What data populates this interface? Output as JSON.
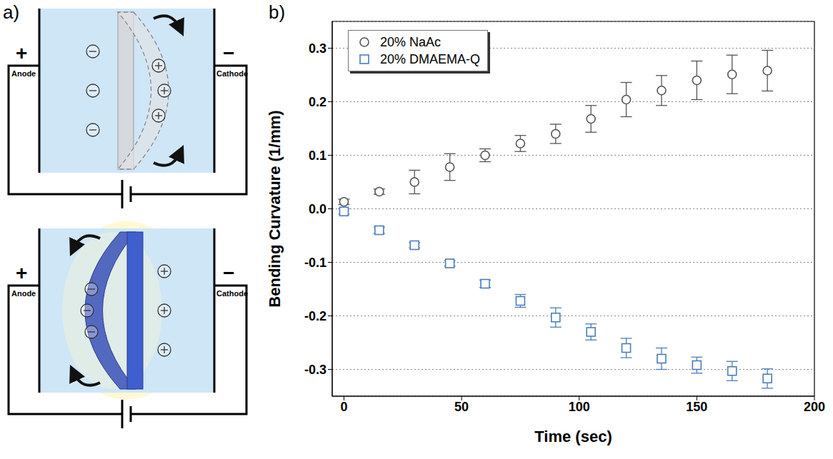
{
  "diagram": {
    "panel_label": "a)",
    "cells": [
      {
        "anode_sign": "+",
        "cathode_sign": "−",
        "anode": "Anode",
        "cathode": "Cathode"
      },
      {
        "anode_sign": "+",
        "cathode_sign": "−",
        "anode": "Anode",
        "cathode": "Cathode"
      }
    ]
  },
  "chart_data": {
    "panel_label": "b)",
    "type": "scatter",
    "x_label": "Time (sec)",
    "y_label": "Bending Curvature (1/mm)",
    "x": [
      0,
      15,
      30,
      45,
      60,
      75,
      90,
      105,
      120,
      135,
      150,
      165,
      180
    ],
    "series": [
      {
        "name": "20% NaAc",
        "color": "#555555",
        "marker": "circle",
        "values": [
          0.013,
          0.032,
          0.05,
          0.078,
          0.1,
          0.122,
          0.14,
          0.168,
          0.204,
          0.221,
          0.24,
          0.251,
          0.258
        ],
        "errors": [
          0.005,
          0.005,
          0.022,
          0.025,
          0.012,
          0.015,
          0.018,
          0.025,
          0.032,
          0.028,
          0.036,
          0.036,
          0.038
        ]
      },
      {
        "name": "20% DMAEMA-Q",
        "color": "#4a7ebb",
        "marker": "square",
        "values": [
          -0.005,
          -0.04,
          -0.068,
          -0.102,
          -0.14,
          -0.172,
          -0.203,
          -0.23,
          -0.26,
          -0.28,
          -0.292,
          -0.303,
          -0.317
        ],
        "errors": [
          0.005,
          0.006,
          0.005,
          0.005,
          0.007,
          0.012,
          0.018,
          0.015,
          0.018,
          0.02,
          0.015,
          0.018,
          0.018
        ]
      }
    ],
    "xlim": [
      -5,
      200
    ],
    "xticks": [
      0,
      50,
      100,
      150,
      200
    ],
    "ylim": [
      -0.35,
      0.35
    ],
    "yticks": [
      -0.3,
      -0.2,
      -0.1,
      {
        "value": 0,
        "label": "0.0"
      },
      0.1,
      0.2,
      0.3
    ],
    "grid": true,
    "legend": "upper left"
  }
}
